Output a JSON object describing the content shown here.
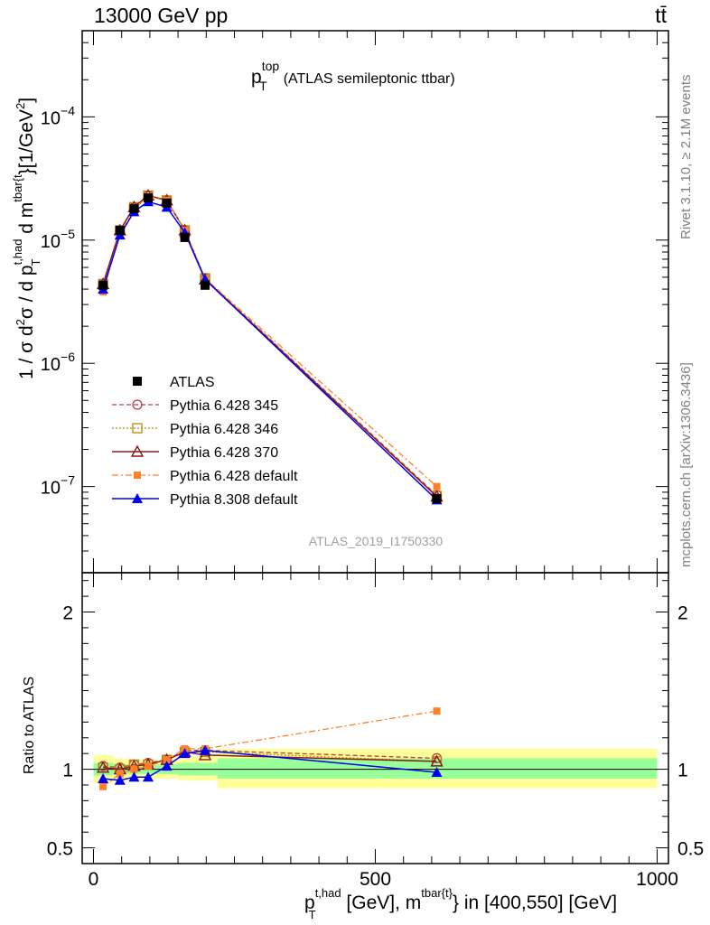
{
  "header": {
    "left": "13000 GeV pp",
    "right": "tt̄"
  },
  "side_texts": {
    "rivet": "Rivet 3.1.10, ≥ 2.1M events",
    "mcplots": "mcplots.cern.ch [arXiv:1306.3436]"
  },
  "analysis_id": "ATLAS_2019_I1750330",
  "colors": {
    "atlas": "#000000",
    "p345": "#c0394b",
    "p346": "#b8860b",
    "p370": "#8b1a1a",
    "p6def": "#ff7f2a",
    "p8def": "#0000ee",
    "band_inner": "#99ff99",
    "band_outer": "#ffff99"
  },
  "chart_data": [
    {
      "type": "line",
      "panel": "main",
      "title": "p_T^top (ATLAS semileptonic ttbar)",
      "title_parts": {
        "base": "p",
        "sub": "T",
        "sup": "top",
        "rest": "(ATLAS semileptonic ttbar)"
      },
      "ylabel": "1 / σ d²σ / d p_T^{t,had} d m^{tbar{t}} [1/GeV²]",
      "yscale": "log",
      "ylim": [
        2e-08,
        0.0005
      ],
      "xlim": [
        -20,
        1020
      ],
      "yticks": [
        {
          "value": 1e-07,
          "base": "10",
          "exp": "−7"
        },
        {
          "value": 1e-06,
          "base": "10",
          "exp": "−6"
        },
        {
          "value": 1e-05,
          "base": "10",
          "exp": "−5"
        },
        {
          "value": 0.0001,
          "base": "10",
          "exp": "−4"
        }
      ],
      "legend_position": "middle-left",
      "series": [
        {
          "key": "atlas",
          "name": "ATLAS",
          "style": "data",
          "x": [
            17,
            47,
            72,
            97,
            130,
            162,
            198,
            609
          ],
          "y": [
            4.3e-06,
            1.2e-05,
            1.8e-05,
            2.2e-05,
            2e-05,
            1.05e-05,
            4.3e-06,
            8e-08
          ]
        },
        {
          "key": "p345",
          "name": "Pythia 6.428 345",
          "style": "dashed-circle",
          "x": [
            17,
            47,
            72,
            97,
            130,
            162,
            198,
            609
          ],
          "y": [
            4.4e-06,
            1.2e-05,
            1.85e-05,
            2.3e-05,
            2.1e-05,
            1.2e-05,
            4.9e-06,
            8.5e-08
          ]
        },
        {
          "key": "p346",
          "name": "Pythia 6.428 346",
          "style": "dotted-square",
          "x": [
            17,
            47,
            72,
            97,
            130,
            162,
            198,
            609
          ],
          "y": [
            4.4e-06,
            1.2e-05,
            1.85e-05,
            2.3e-05,
            2.1e-05,
            1.2e-05,
            4.9e-06,
            8.4e-08
          ]
        },
        {
          "key": "p370",
          "name": "Pythia 6.428 370",
          "style": "solid-triangle-open",
          "x": [
            17,
            47,
            72,
            97,
            130,
            162,
            198,
            609
          ],
          "y": [
            4.4e-06,
            1.2e-05,
            1.85e-05,
            2.3e-05,
            2.1e-05,
            1.2e-05,
            4.8e-06,
            8.3e-08
          ]
        },
        {
          "key": "p6def",
          "name": "Pythia 6.428 default",
          "style": "dashdot-square-filled",
          "x": [
            17,
            47,
            72,
            97,
            130,
            162,
            198,
            609
          ],
          "y": [
            3.8e-06,
            1.15e-05,
            1.8e-05,
            2.25e-05,
            2.1e-05,
            1.2e-05,
            4.9e-06,
            1e-07
          ]
        },
        {
          "key": "p8def",
          "name": "Pythia 8.308 default",
          "style": "solid-triangle-filled",
          "x": [
            17,
            47,
            72,
            97,
            130,
            162,
            198,
            609
          ],
          "y": [
            4e-06,
            1.1e-05,
            1.7e-05,
            2.05e-05,
            1.85e-05,
            1.15e-05,
            4.8e-06,
            7.8e-08
          ]
        }
      ]
    },
    {
      "type": "line",
      "panel": "ratio",
      "ylabel": "Ratio to ATLAS",
      "xlabel": "p_T^{t,had} [GeV], m^{tbar{t}} in [400,550] [GeV]",
      "xlabel_parts": {
        "p": "p",
        "p_sub": "T",
        "p_sup": "t,had",
        "mid": "[GeV], m",
        "m_sup": "tbar{t}",
        "rest": "} in [400,550] [GeV]"
      },
      "ylim": [
        0.4,
        2.25
      ],
      "xlim": [
        -20,
        1020
      ],
      "yticks": [
        {
          "value": 0.5,
          "label": "0.5"
        },
        {
          "value": 1,
          "label": "1"
        },
        {
          "value": 2,
          "label": "2"
        }
      ],
      "xticks": [
        {
          "value": 0,
          "label": "0"
        },
        {
          "value": 500,
          "label": "500"
        },
        {
          "value": 1000,
          "label": "1000"
        }
      ],
      "bands": [
        {
          "x0": 0,
          "x1": 35,
          "inner": [
            0.96,
            1.04
          ],
          "outer": [
            0.91,
            1.09
          ]
        },
        {
          "x0": 35,
          "x1": 60,
          "inner": [
            0.97,
            1.03
          ],
          "outer": [
            0.93,
            1.07
          ]
        },
        {
          "x0": 60,
          "x1": 85,
          "inner": [
            0.97,
            1.03
          ],
          "outer": [
            0.94,
            1.06
          ]
        },
        {
          "x0": 85,
          "x1": 110,
          "inner": [
            0.97,
            1.03
          ],
          "outer": [
            0.94,
            1.06
          ]
        },
        {
          "x0": 110,
          "x1": 150,
          "inner": [
            0.97,
            1.03
          ],
          "outer": [
            0.94,
            1.06
          ]
        },
        {
          "x0": 150,
          "x1": 175,
          "inner": [
            0.96,
            1.04
          ],
          "outer": [
            0.93,
            1.07
          ]
        },
        {
          "x0": 175,
          "x1": 220,
          "inner": [
            0.96,
            1.04
          ],
          "outer": [
            0.93,
            1.08
          ]
        },
        {
          "x0": 220,
          "x1": 1000,
          "inner": [
            0.94,
            1.07
          ],
          "outer": [
            0.88,
            1.13
          ]
        }
      ],
      "series": [
        {
          "key": "p345",
          "x": [
            17,
            47,
            72,
            97,
            130,
            162,
            198,
            609
          ],
          "y": [
            1.02,
            1.01,
            1.03,
            1.04,
            1.06,
            1.12,
            1.12,
            1.07
          ]
        },
        {
          "key": "p346",
          "x": [
            17,
            47,
            72,
            97,
            130,
            162,
            198,
            609
          ],
          "y": [
            1.01,
            1.0,
            1.03,
            1.03,
            1.06,
            1.11,
            1.11,
            1.05
          ]
        },
        {
          "key": "p370",
          "x": [
            17,
            47,
            72,
            97,
            130,
            162,
            198,
            609
          ],
          "y": [
            1.01,
            1.0,
            1.02,
            1.03,
            1.06,
            1.11,
            1.09,
            1.05
          ]
        },
        {
          "key": "p6def",
          "x": [
            17,
            47,
            72,
            97,
            130,
            162,
            198,
            609
          ],
          "y": [
            0.89,
            0.97,
            1.0,
            1.02,
            1.06,
            1.13,
            1.13,
            1.37
          ]
        },
        {
          "key": "p8def",
          "x": [
            17,
            47,
            72,
            97,
            130,
            162,
            198,
            609
          ],
          "y": [
            0.94,
            0.93,
            0.95,
            0.95,
            1.02,
            1.1,
            1.12,
            0.98
          ]
        }
      ]
    }
  ]
}
